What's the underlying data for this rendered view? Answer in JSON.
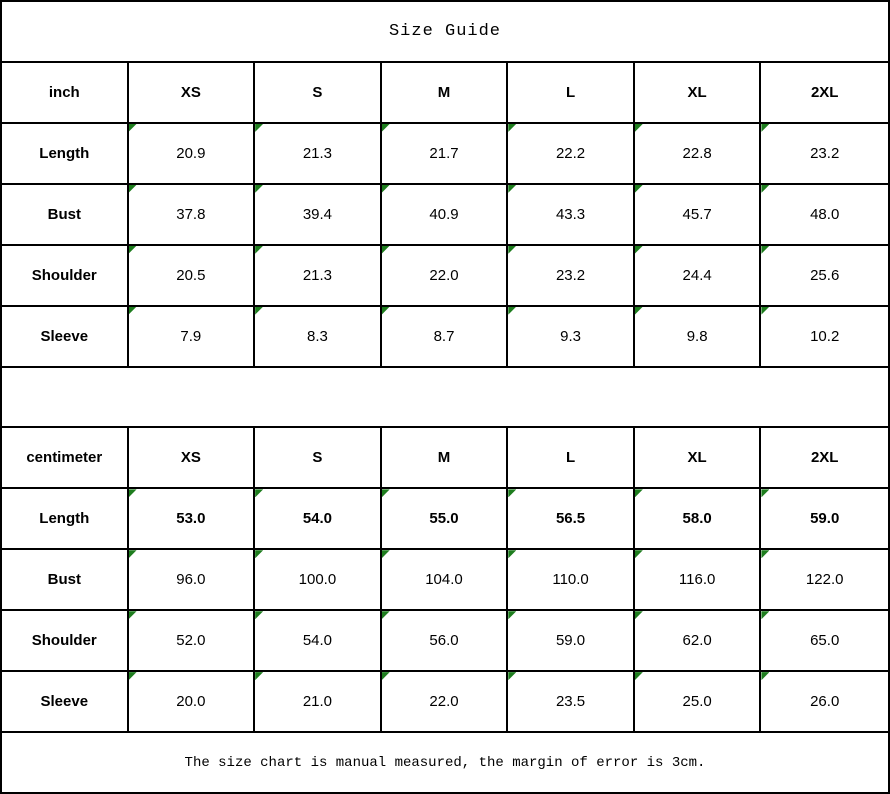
{
  "title": "Size Guide",
  "footer_note": "The size chart is manual measured, the margin of error is 3cm.",
  "colors": {
    "border": "#000000",
    "text": "#000000",
    "background": "#ffffff",
    "corner_marker_green": "#1e7d1e"
  },
  "icons": {
    "corner_triangle": "green right-triangle marker at top-left of numeric cells"
  },
  "chart_data": [
    {
      "type": "table",
      "title": "Size Guide",
      "unit": "inch",
      "columns": [
        "XS",
        "S",
        "M",
        "L",
        "XL",
        "2XL"
      ],
      "rows": [
        {
          "label": "Length",
          "values": [
            "20.9",
            "21.3",
            "21.7",
            "22.2",
            "22.8",
            "23.2"
          ]
        },
        {
          "label": "Bust",
          "values": [
            "37.8",
            "39.4",
            "40.9",
            "43.3",
            "45.7",
            "48.0"
          ]
        },
        {
          "label": "Shoulder",
          "values": [
            "20.5",
            "21.3",
            "22.0",
            "23.2",
            "24.4",
            "25.6"
          ]
        },
        {
          "label": "Sleeve",
          "values": [
            "7.9",
            "8.3",
            "8.7",
            "9.3",
            "9.8",
            "10.2"
          ]
        }
      ]
    },
    {
      "type": "table",
      "title": "Size Guide",
      "unit": "centimeter",
      "columns": [
        "XS",
        "S",
        "M",
        "L",
        "XL",
        "2XL"
      ],
      "rows": [
        {
          "label": "Length",
          "values": [
            "53.0",
            "54.0",
            "55.0",
            "56.5",
            "58.0",
            "59.0"
          ],
          "bold": true
        },
        {
          "label": "Bust",
          "values": [
            "96.0",
            "100.0",
            "104.0",
            "110.0",
            "116.0",
            "122.0"
          ]
        },
        {
          "label": "Shoulder",
          "values": [
            "52.0",
            "54.0",
            "56.0",
            "59.0",
            "62.0",
            "65.0"
          ]
        },
        {
          "label": "Sleeve",
          "values": [
            "20.0",
            "21.0",
            "22.0",
            "23.5",
            "25.0",
            "26.0"
          ]
        }
      ]
    }
  ]
}
